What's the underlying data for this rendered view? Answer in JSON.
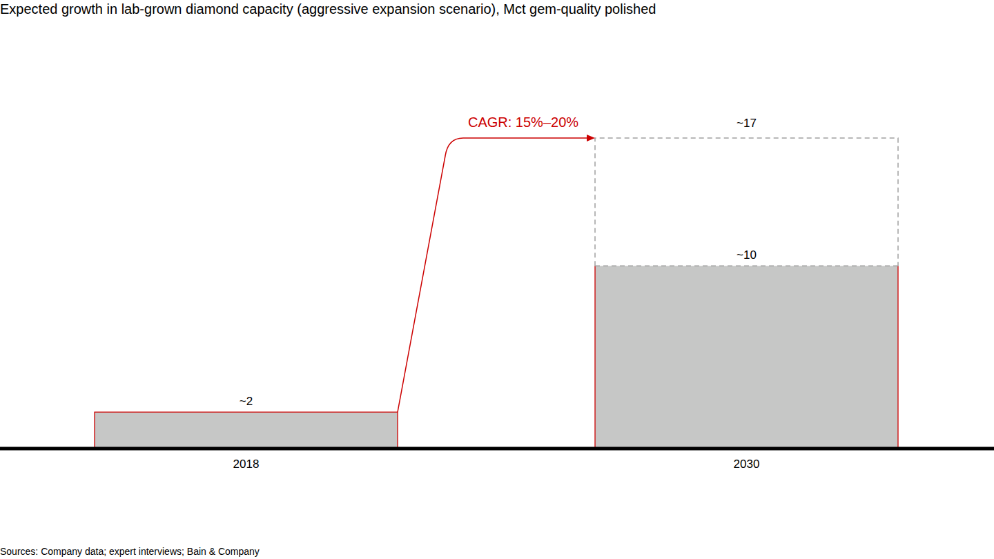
{
  "chart_data": {
    "type": "bar",
    "title": "Expected growth in lab-grown diamond capacity (aggressive expansion scenario), Mct gem-quality polished",
    "categories": [
      "2018",
      "2030"
    ],
    "values": [
      2,
      10
    ],
    "value_labels": [
      "~2",
      "~10"
    ],
    "upper_values": [
      null,
      17
    ],
    "upper_value_labels": [
      null,
      "~17"
    ],
    "color": "#c6c7c6",
    "ylim": [
      0,
      17
    ],
    "tick_labels": "x",
    "data_labels": true,
    "annotation": "CAGR: 15%–20%",
    "source": "Sources: Company data; expert interviews; Bain & Company"
  }
}
